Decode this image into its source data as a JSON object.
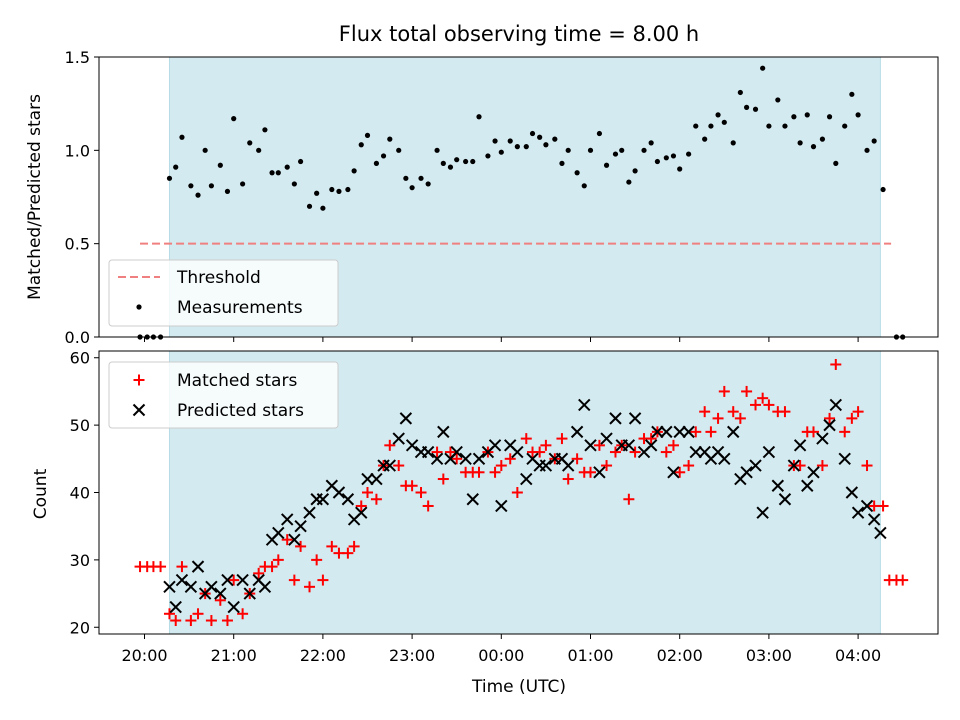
{
  "chart_data": {
    "type": "scatter",
    "title": "Flux total observing time = 8.00 h",
    "x_tick_labels": [
      "20:00",
      "21:00",
      "22:00",
      "23:00",
      "00:00",
      "01:00",
      "02:00",
      "03:00",
      "04:00"
    ],
    "xlabel": "Time (UTC)",
    "colors": {
      "shade": "#d3eaf0",
      "shade_edge": "#b7dce6",
      "threshold": "#f08080",
      "measurements": "#000000",
      "matched": "#ff0000",
      "predicted": "#000000"
    },
    "top_panel": {
      "ylabel": "Matched/Predicted stars",
      "ylim": [
        0,
        1.5
      ],
      "y_ticks": [
        0,
        0.5,
        1.0,
        1.5
      ],
      "y_tick_labels": [
        "0.0",
        "0.5",
        "1.0",
        "1.5"
      ],
      "shaded_span_hours": [
        0.28,
        8.25
      ],
      "legend_position": "lower-left",
      "threshold": {
        "name": "Threshold",
        "value": 0.5,
        "x_range": [
          -0.05,
          8.37
        ]
      },
      "measurements": {
        "name": "Measurements",
        "x": [
          -0.05,
          0.03,
          0.1,
          0.18,
          0.28,
          0.35,
          0.42,
          0.52,
          0.6,
          0.68,
          0.75,
          0.85,
          0.93,
          1.0,
          1.1,
          1.18,
          1.28,
          1.35,
          1.43,
          1.5,
          1.6,
          1.68,
          1.75,
          1.85,
          1.93,
          2.0,
          2.1,
          2.18,
          2.28,
          2.35,
          2.43,
          2.5,
          2.6,
          2.68,
          2.75,
          2.85,
          2.93,
          3.0,
          3.1,
          3.18,
          3.28,
          3.35,
          3.43,
          3.5,
          3.6,
          3.68,
          3.75,
          3.85,
          3.93,
          4.0,
          4.1,
          4.18,
          4.28,
          4.35,
          4.43,
          4.5,
          4.6,
          4.68,
          4.75,
          4.85,
          4.93,
          5.0,
          5.1,
          5.18,
          5.28,
          5.35,
          5.43,
          5.5,
          5.6,
          5.68,
          5.75,
          5.85,
          5.93,
          6.0,
          6.1,
          6.18,
          6.28,
          6.35,
          6.43,
          6.5,
          6.6,
          6.68,
          6.75,
          6.85,
          6.93,
          7.0,
          7.1,
          7.18,
          7.28,
          7.35,
          7.43,
          7.5,
          7.6,
          7.68,
          7.75,
          7.85,
          7.93,
          8.0,
          8.1,
          8.18,
          8.28,
          8.43,
          8.5
        ],
        "y": [
          0,
          0,
          0,
          0,
          0.85,
          0.91,
          1.07,
          0.81,
          0.76,
          1.0,
          0.81,
          0.92,
          0.78,
          1.17,
          0.82,
          1.04,
          1.0,
          1.11,
          0.88,
          0.88,
          0.91,
          0.82,
          0.94,
          0.7,
          0.77,
          0.69,
          0.79,
          0.78,
          0.79,
          0.89,
          1.03,
          1.08,
          0.93,
          0.97,
          1.06,
          1.0,
          0.85,
          0.8,
          0.85,
          0.82,
          1.0,
          0.93,
          0.91,
          0.95,
          0.94,
          0.94,
          1.18,
          0.97,
          1.05,
          0.99,
          1.05,
          1.02,
          1.02,
          1.09,
          1.07,
          1.03,
          1.06,
          0.93,
          1.0,
          0.88,
          0.81,
          1.0,
          1.09,
          0.92,
          0.98,
          1.0,
          0.83,
          0.89,
          1.0,
          1.04,
          0.94,
          0.96,
          0.97,
          0.9,
          0.98,
          1.13,
          1.06,
          1.13,
          1.19,
          1.15,
          1.04,
          1.31,
          1.23,
          1.22,
          1.44,
          1.13,
          1.27,
          1.13,
          1.18,
          1.04,
          1.19,
          1.02,
          1.06,
          1.18,
          0.93,
          1.13,
          1.3,
          1.19,
          1.0,
          1.05,
          0.79,
          0,
          0
        ]
      }
    },
    "bottom_panel": {
      "ylabel": "Count",
      "ylim": [
        19,
        61
      ],
      "y_ticks": [
        20,
        30,
        40,
        50,
        60
      ],
      "y_tick_labels": [
        "20",
        "30",
        "40",
        "50",
        "60"
      ],
      "shaded_span_hours": [
        0.28,
        8.25
      ],
      "legend_position": "upper-left",
      "matched": {
        "name": "Matched stars",
        "x": [
          -0.05,
          0.03,
          0.1,
          0.18,
          0.28,
          0.35,
          0.42,
          0.52,
          0.6,
          0.68,
          0.75,
          0.85,
          0.93,
          1.0,
          1.1,
          1.18,
          1.28,
          1.35,
          1.43,
          1.5,
          1.6,
          1.68,
          1.75,
          1.85,
          1.93,
          2.0,
          2.1,
          2.18,
          2.28,
          2.35,
          2.43,
          2.5,
          2.6,
          2.68,
          2.75,
          2.85,
          2.93,
          3.0,
          3.1,
          3.18,
          3.28,
          3.35,
          3.43,
          3.5,
          3.6,
          3.68,
          3.75,
          3.85,
          3.93,
          4.0,
          4.1,
          4.18,
          4.28,
          4.35,
          4.43,
          4.5,
          4.6,
          4.68,
          4.75,
          4.85,
          4.93,
          5.0,
          5.1,
          5.18,
          5.28,
          5.35,
          5.43,
          5.5,
          5.6,
          5.68,
          5.75,
          5.85,
          5.93,
          6.0,
          6.1,
          6.18,
          6.28,
          6.35,
          6.43,
          6.5,
          6.6,
          6.68,
          6.75,
          6.85,
          6.93,
          7.0,
          7.1,
          7.18,
          7.28,
          7.35,
          7.43,
          7.5,
          7.6,
          7.68,
          7.75,
          7.85,
          7.93,
          8.0,
          8.1,
          8.18,
          8.28,
          8.35,
          8.43,
          8.5
        ],
        "y": [
          29,
          29,
          29,
          29,
          22,
          21,
          29,
          21,
          22,
          25,
          21,
          24,
          21,
          27,
          22,
          25,
          28,
          29,
          29,
          30,
          33,
          27,
          32,
          26,
          30,
          27,
          32,
          31,
          31,
          32,
          38,
          40,
          39,
          44,
          47,
          44,
          41,
          41,
          40,
          38,
          46,
          42,
          46,
          45,
          43,
          43,
          43,
          46,
          43,
          44,
          45,
          40,
          48,
          46,
          46,
          47,
          45,
          48,
          42,
          45,
          43,
          43,
          47,
          44,
          46,
          47,
          39,
          46,
          48,
          48,
          49,
          46,
          47,
          43,
          44,
          49,
          52,
          49,
          51,
          55,
          52,
          51,
          55,
          53,
          54,
          53,
          52,
          52,
          44,
          44,
          49,
          49,
          44,
          51,
          59,
          49,
          51,
          52,
          44,
          38,
          38,
          27,
          27,
          27
        ]
      },
      "predicted": {
        "name": "Predicted stars",
        "x": [
          0.28,
          0.35,
          0.42,
          0.52,
          0.6,
          0.68,
          0.75,
          0.85,
          0.93,
          1.0,
          1.1,
          1.18,
          1.28,
          1.35,
          1.43,
          1.5,
          1.6,
          1.68,
          1.75,
          1.85,
          1.93,
          2.0,
          2.1,
          2.18,
          2.28,
          2.35,
          2.43,
          2.5,
          2.6,
          2.68,
          2.75,
          2.85,
          2.93,
          3.0,
          3.1,
          3.18,
          3.28,
          3.35,
          3.43,
          3.5,
          3.6,
          3.68,
          3.75,
          3.85,
          3.93,
          4.0,
          4.1,
          4.18,
          4.28,
          4.35,
          4.43,
          4.5,
          4.6,
          4.68,
          4.75,
          4.85,
          4.93,
          5.0,
          5.1,
          5.18,
          5.28,
          5.35,
          5.43,
          5.5,
          5.6,
          5.68,
          5.75,
          5.85,
          5.93,
          6.0,
          6.1,
          6.18,
          6.28,
          6.35,
          6.43,
          6.5,
          6.6,
          6.68,
          6.75,
          6.85,
          6.93,
          7.0,
          7.1,
          7.18,
          7.28,
          7.35,
          7.43,
          7.5,
          7.6,
          7.68,
          7.75,
          7.85,
          7.93,
          8.0,
          8.1,
          8.18,
          8.25
        ],
        "y": [
          26,
          23,
          27,
          26,
          29,
          25,
          26,
          25,
          27,
          23,
          27,
          25,
          27,
          26,
          33,
          34,
          36,
          33,
          35,
          37,
          39,
          39,
          41,
          40,
          39,
          36,
          37,
          42,
          42,
          44,
          44,
          48,
          51,
          47,
          46,
          46,
          45,
          49,
          45,
          46,
          45,
          39,
          45,
          46,
          47,
          38,
          47,
          46,
          42,
          45,
          44,
          44,
          45,
          45,
          44,
          49,
          53,
          47,
          43,
          48,
          51,
          47,
          47,
          51,
          46,
          47,
          49,
          49,
          43,
          49,
          49,
          46,
          46,
          45,
          46,
          45,
          49,
          42,
          43,
          44,
          37,
          46,
          41,
          39,
          44,
          47,
          41,
          43,
          48,
          50,
          53,
          45,
          40,
          37,
          38,
          36,
          34
        ]
      }
    }
  }
}
